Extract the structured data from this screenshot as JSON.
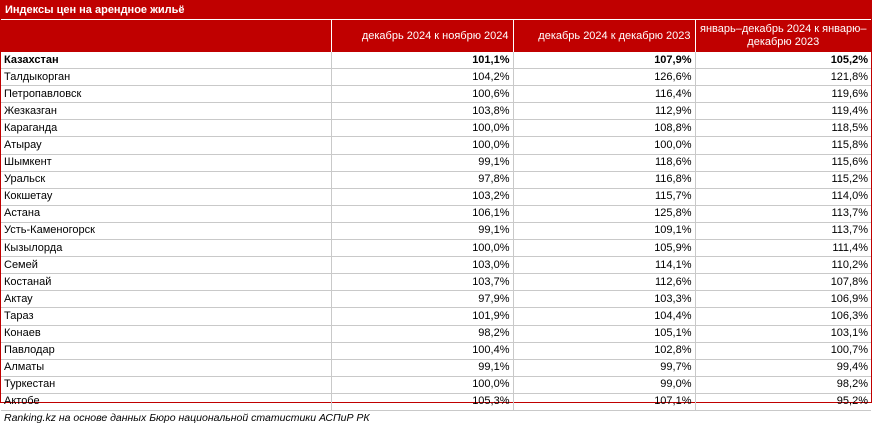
{
  "title": "Индексы цен на арендное жильё",
  "columns": [
    "",
    "декабрь 2024 к ноябрю 2024",
    "декабрь 2024 к декабрю 2023",
    "январь–декабрь 2024 к январю–декабрю 2023"
  ],
  "rows": [
    [
      "Казахстан",
      "101,1%",
      "107,9%",
      "105,2%"
    ],
    [
      "Талдыкорган",
      "104,2%",
      "126,6%",
      "121,8%"
    ],
    [
      "Петропавловск",
      "100,6%",
      "116,4%",
      "119,6%"
    ],
    [
      "Жезказган",
      "103,8%",
      "112,9%",
      "119,4%"
    ],
    [
      "Караганда",
      "100,0%",
      "108,8%",
      "118,5%"
    ],
    [
      "Атырау",
      "100,0%",
      "100,0%",
      "115,8%"
    ],
    [
      "Шымкент",
      "99,1%",
      "118,6%",
      "115,6%"
    ],
    [
      "Уральск",
      "97,8%",
      "116,8%",
      "115,2%"
    ],
    [
      "Кокшетау",
      "103,2%",
      "115,7%",
      "114,0%"
    ],
    [
      "Астана",
      "106,1%",
      "125,8%",
      "113,7%"
    ],
    [
      "Усть-Каменогорск",
      "99,1%",
      "109,1%",
      "113,7%"
    ],
    [
      "Кызылорда",
      "100,0%",
      "105,9%",
      "111,4%"
    ],
    [
      "Семей",
      "103,0%",
      "114,1%",
      "110,2%"
    ],
    [
      "Костанай",
      "103,7%",
      "112,6%",
      "107,8%"
    ],
    [
      "Актау",
      "97,9%",
      "103,3%",
      "106,9%"
    ],
    [
      "Тараз",
      "101,9%",
      "104,4%",
      "106,3%"
    ],
    [
      "Конаев",
      "98,2%",
      "105,1%",
      "103,1%"
    ],
    [
      "Павлодар",
      "100,4%",
      "102,8%",
      "100,7%"
    ],
    [
      "Алматы",
      "99,1%",
      "99,7%",
      "99,4%"
    ],
    [
      "Туркестан",
      "100,0%",
      "99,0%",
      "98,2%"
    ],
    [
      "Актобе",
      "105,3%",
      "107,1%",
      "95,2%"
    ]
  ],
  "footer": "Ranking.kz на основе данных Бюро национальной статистики АСПиР РК",
  "colors": {
    "accent": "#c00000",
    "grid": "#c9c9c9"
  }
}
